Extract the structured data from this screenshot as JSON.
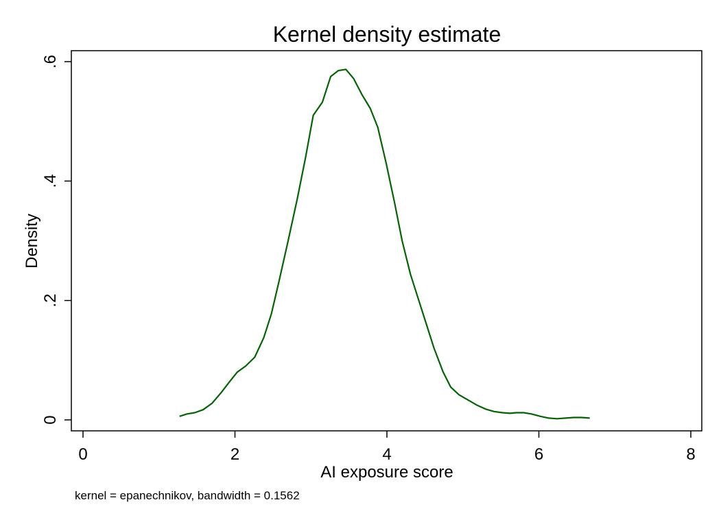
{
  "chart_data": {
    "type": "line",
    "title": "Kernel density estimate",
    "xlabel": "AI exposure score",
    "ylabel": "Density",
    "note": "kernel = epanechnikov, bandwidth = 0.1562",
    "xlim": [
      0,
      8
    ],
    "ylim": [
      0,
      0.6
    ],
    "x_ticks": [
      0,
      2,
      4,
      6,
      8
    ],
    "x_tick_labels": [
      "0",
      "2",
      "4",
      "6",
      "8"
    ],
    "y_ticks": [
      0,
      0.2,
      0.4,
      0.6
    ],
    "y_tick_labels": [
      "0",
      ".2",
      ".4",
      ".6"
    ],
    "grid": false,
    "line_color": "#006400",
    "series": [
      {
        "name": "density",
        "x": [
          1.27,
          1.37,
          1.47,
          1.58,
          1.7,
          1.82,
          1.93,
          2.03,
          2.14,
          2.26,
          2.38,
          2.48,
          2.58,
          2.7,
          2.82,
          2.93,
          3.03,
          3.15,
          3.26,
          3.36,
          3.46,
          3.56,
          3.67,
          3.78,
          3.88,
          3.99,
          4.1,
          4.2,
          4.31,
          4.42,
          4.52,
          4.62,
          4.74,
          4.84,
          4.95,
          5.06,
          5.18,
          5.3,
          5.41,
          5.52,
          5.62,
          5.7,
          5.8,
          5.9,
          6.02,
          6.13,
          6.24,
          6.35,
          6.46,
          6.56,
          6.67
        ],
        "y": [
          0.006,
          0.01,
          0.012,
          0.017,
          0.028,
          0.046,
          0.064,
          0.08,
          0.09,
          0.105,
          0.138,
          0.178,
          0.232,
          0.3,
          0.37,
          0.44,
          0.51,
          0.532,
          0.575,
          0.585,
          0.587,
          0.572,
          0.545,
          0.522,
          0.49,
          0.43,
          0.364,
          0.3,
          0.244,
          0.2,
          0.16,
          0.12,
          0.08,
          0.055,
          0.042,
          0.034,
          0.025,
          0.018,
          0.014,
          0.012,
          0.011,
          0.012,
          0.012,
          0.01,
          0.006,
          0.003,
          0.002,
          0.003,
          0.004,
          0.004,
          0.003
        ]
      }
    ]
  }
}
